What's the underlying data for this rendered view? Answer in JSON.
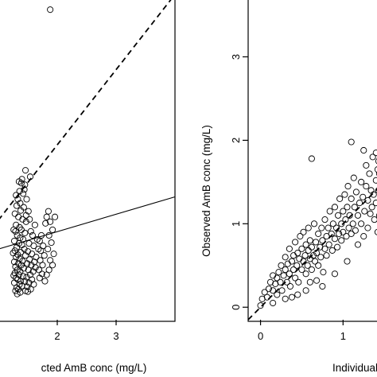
{
  "chart_data": [
    {
      "type": "scatter",
      "panel": "left",
      "xlabel": "cted AmB conc (mg/L)",
      "ylabel": "",
      "x_ticks": [
        "2",
        "3"
      ],
      "y_ticks": [],
      "xlim": [
        1.0,
        4.0
      ],
      "ylim": [
        0.0,
        4.0
      ],
      "grid": false,
      "lines": [
        {
          "name": "identity",
          "style": "dashed",
          "x": [
            1.0,
            4.0
          ],
          "y": [
            1.24,
            4.05
          ]
        },
        {
          "name": "regression",
          "style": "solid",
          "x": [
            1.0,
            4.0
          ],
          "y": [
            0.88,
            1.53
          ]
        }
      ],
      "points": [
        [
          1.88,
          3.86
        ],
        [
          1.54,
          1.78
        ],
        [
          1.46,
          1.86
        ],
        [
          1.4,
          1.75
        ],
        [
          1.39,
          1.7
        ],
        [
          1.35,
          1.72
        ],
        [
          1.44,
          1.62
        ],
        [
          1.36,
          1.6
        ],
        [
          1.42,
          1.57
        ],
        [
          1.3,
          1.55
        ],
        [
          1.33,
          1.5
        ],
        [
          1.37,
          1.45
        ],
        [
          1.31,
          1.42
        ],
        [
          1.43,
          1.4
        ],
        [
          1.38,
          1.36
        ],
        [
          1.28,
          1.32
        ],
        [
          1.34,
          1.28
        ],
        [
          1.41,
          1.25
        ],
        [
          1.47,
          1.22
        ],
        [
          1.3,
          1.18
        ],
        [
          1.36,
          1.15
        ],
        [
          1.39,
          1.12
        ],
        [
          1.29,
          1.1
        ],
        [
          1.45,
          1.08
        ],
        [
          1.32,
          1.05
        ],
        [
          1.37,
          1.02
        ],
        [
          1.42,
          1.0
        ],
        [
          1.27,
          0.98
        ],
        [
          1.35,
          0.95
        ],
        [
          1.4,
          0.93
        ],
        [
          1.31,
          0.9
        ],
        [
          1.44,
          0.88
        ],
        [
          1.28,
          0.86
        ],
        [
          1.38,
          0.84
        ],
        [
          1.33,
          0.81
        ],
        [
          1.46,
          0.8
        ],
        [
          1.3,
          0.78
        ],
        [
          1.36,
          0.76
        ],
        [
          1.41,
          0.73
        ],
        [
          1.27,
          0.72
        ],
        [
          1.34,
          0.7
        ],
        [
          1.39,
          0.68
        ],
        [
          1.29,
          0.66
        ],
        [
          1.43,
          0.64
        ],
        [
          1.32,
          0.62
        ],
        [
          1.37,
          0.6
        ],
        [
          1.28,
          0.58
        ],
        [
          1.35,
          0.56
        ],
        [
          1.42,
          0.54
        ],
        [
          1.3,
          0.52
        ],
        [
          1.33,
          0.5
        ],
        [
          1.38,
          0.48
        ],
        [
          1.27,
          0.46
        ],
        [
          1.36,
          0.44
        ],
        [
          1.4,
          0.42
        ],
        [
          1.31,
          0.4
        ],
        [
          1.34,
          0.38
        ],
        [
          1.29,
          0.36
        ],
        [
          1.37,
          0.34
        ],
        [
          1.32,
          0.32
        ],
        [
          1.55,
          1.1
        ],
        [
          1.62,
          1.18
        ],
        [
          1.58,
          1.05
        ],
        [
          1.66,
          1.0
        ],
        [
          1.52,
          0.95
        ],
        [
          1.6,
          0.92
        ],
        [
          1.68,
          0.88
        ],
        [
          1.5,
          0.85
        ],
        [
          1.57,
          0.82
        ],
        [
          1.64,
          0.78
        ],
        [
          1.53,
          0.75
        ],
        [
          1.61,
          0.72
        ],
        [
          1.49,
          0.7
        ],
        [
          1.56,
          0.68
        ],
        [
          1.63,
          0.65
        ],
        [
          1.51,
          0.62
        ],
        [
          1.59,
          0.6
        ],
        [
          1.54,
          0.56
        ],
        [
          1.48,
          0.53
        ],
        [
          1.57,
          0.5
        ],
        [
          1.52,
          0.46
        ],
        [
          1.6,
          0.44
        ],
        [
          1.49,
          0.41
        ],
        [
          1.55,
          0.38
        ],
        [
          1.5,
          0.35
        ],
        [
          1.73,
          1.05
        ],
        [
          1.7,
          0.98
        ],
        [
          1.76,
          0.92
        ],
        [
          1.72,
          0.86
        ],
        [
          1.78,
          0.8
        ],
        [
          1.71,
          0.74
        ],
        [
          1.75,
          0.68
        ],
        [
          1.69,
          0.62
        ],
        [
          1.74,
          0.57
        ],
        [
          1.7,
          0.52
        ],
        [
          1.8,
          1.2
        ],
        [
          1.85,
          1.35
        ],
        [
          1.82,
          1.28
        ],
        [
          1.88,
          1.22
        ],
        [
          1.92,
          1.12
        ],
        [
          1.86,
          1.05
        ],
        [
          1.9,
          0.96
        ],
        [
          1.84,
          0.88
        ],
        [
          1.94,
          0.82
        ],
        [
          1.88,
          0.74
        ],
        [
          1.92,
          0.68
        ],
        [
          1.86,
          0.62
        ],
        [
          1.96,
          1.28
        ],
        [
          1.82,
          0.56
        ],
        [
          1.79,
          0.48
        ],
        [
          1.45,
          1.68
        ],
        [
          1.48,
          1.5
        ],
        [
          1.51,
          1.35
        ],
        [
          1.47,
          1.3
        ],
        [
          1.53,
          1.25
        ],
        [
          1.25,
          0.83
        ],
        [
          1.26,
          1.12
        ],
        [
          1.26,
          0.55
        ],
        [
          1.45,
          0.48
        ],
        [
          1.46,
          0.36
        ]
      ]
    },
    {
      "type": "scatter",
      "panel": "right",
      "xlabel": "Individual posterio",
      "ylabel": "Observed AmB conc (mg/L)",
      "x_ticks": [
        "0",
        "1"
      ],
      "y_ticks": [
        "0",
        "1",
        "2",
        "3"
      ],
      "xlim": [
        -0.15,
        1.45
      ],
      "ylim": [
        -0.15,
        3.7
      ],
      "grid": false,
      "lines": [
        {
          "name": "identity",
          "style": "dashed",
          "x": [
            -0.15,
            1.45
          ],
          "y": [
            -0.15,
            1.45
          ]
        }
      ],
      "points": [
        [
          0.0,
          0.02
        ],
        [
          0.02,
          0.1
        ],
        [
          0.05,
          0.18
        ],
        [
          0.08,
          0.12
        ],
        [
          0.1,
          0.22
        ],
        [
          0.12,
          0.3
        ],
        [
          0.15,
          0.2
        ],
        [
          0.15,
          0.38
        ],
        [
          0.18,
          0.28
        ],
        [
          0.2,
          0.35
        ],
        [
          0.2,
          0.15
        ],
        [
          0.22,
          0.42
        ],
        [
          0.24,
          0.3
        ],
        [
          0.25,
          0.5
        ],
        [
          0.26,
          0.2
        ],
        [
          0.28,
          0.38
        ],
        [
          0.3,
          0.45
        ],
        [
          0.3,
          0.6
        ],
        [
          0.32,
          0.3
        ],
        [
          0.33,
          0.52
        ],
        [
          0.35,
          0.4
        ],
        [
          0.35,
          0.7
        ],
        [
          0.36,
          0.25
        ],
        [
          0.38,
          0.55
        ],
        [
          0.4,
          0.45
        ],
        [
          0.4,
          0.62
        ],
        [
          0.42,
          0.35
        ],
        [
          0.42,
          0.78
        ],
        [
          0.44,
          0.5
        ],
        [
          0.45,
          0.65
        ],
        [
          0.46,
          0.3
        ],
        [
          0.47,
          0.58
        ],
        [
          0.48,
          0.85
        ],
        [
          0.5,
          0.45
        ],
        [
          0.5,
          0.7
        ],
        [
          0.52,
          0.55
        ],
        [
          0.52,
          0.9
        ],
        [
          0.54,
          0.62
        ],
        [
          0.55,
          0.4
        ],
        [
          0.55,
          0.75
        ],
        [
          0.57,
          0.5
        ],
        [
          0.58,
          0.68
        ],
        [
          0.58,
          0.95
        ],
        [
          0.6,
          0.58
        ],
        [
          0.6,
          0.8
        ],
        [
          0.62,
          0.45
        ],
        [
          0.62,
          0.72
        ],
        [
          0.64,
          0.62
        ],
        [
          0.65,
          1.0
        ],
        [
          0.66,
          0.55
        ],
        [
          0.67,
          0.78
        ],
        [
          0.68,
          0.65
        ],
        [
          0.7,
          0.88
        ],
        [
          0.7,
          0.5
        ],
        [
          0.72,
          0.72
        ],
        [
          0.73,
          0.6
        ],
        [
          0.74,
          0.95
        ],
        [
          0.75,
          0.8
        ],
        [
          0.76,
          0.42
        ],
        [
          0.78,
          0.7
        ],
        [
          0.78,
          1.05
        ],
        [
          0.8,
          0.85
        ],
        [
          0.8,
          0.62
        ],
        [
          0.82,
          0.95
        ],
        [
          0.83,
          0.75
        ],
        [
          0.84,
          1.15
        ],
        [
          0.86,
          0.88
        ],
        [
          0.87,
          0.68
        ],
        [
          0.88,
          1.0
        ],
        [
          0.9,
          0.82
        ],
        [
          0.9,
          1.2
        ],
        [
          0.92,
          0.95
        ],
        [
          0.93,
          0.72
        ],
        [
          0.94,
          1.1
        ],
        [
          0.95,
          0.88
        ],
        [
          0.96,
          1.3
        ],
        [
          0.98,
          1.0
        ],
        [
          0.98,
          0.8
        ],
        [
          1.0,
          1.15
        ],
        [
          1.0,
          0.9
        ],
        [
          1.02,
          1.35
        ],
        [
          1.03,
          1.05
        ],
        [
          1.04,
          0.85
        ],
        [
          1.05,
          1.2
        ],
        [
          1.06,
          1.45
        ],
        [
          1.07,
          0.95
        ],
        [
          1.08,
          1.1
        ],
        [
          1.1,
          1.3
        ],
        [
          1.1,
          0.88
        ],
        [
          1.12,
          1.0
        ],
        [
          1.13,
          1.55
        ],
        [
          1.14,
          1.2
        ],
        [
          1.15,
          0.92
        ],
        [
          1.16,
          1.38
        ],
        [
          1.18,
          1.1
        ],
        [
          1.18,
          0.75
        ],
        [
          1.2,
          1.25
        ],
        [
          1.22,
          1.5
        ],
        [
          1.22,
          1.0
        ],
        [
          1.24,
          1.32
        ],
        [
          1.25,
          0.85
        ],
        [
          1.26,
          1.15
        ],
        [
          1.28,
          1.45
        ],
        [
          1.28,
          1.7
        ],
        [
          1.3,
          1.28
        ],
        [
          1.3,
          0.95
        ],
        [
          1.32,
          1.6
        ],
        [
          1.33,
          1.12
        ],
        [
          1.34,
          1.4
        ],
        [
          1.35,
          1.2
        ],
        [
          1.36,
          1.8
        ],
        [
          1.37,
          1.35
        ],
        [
          1.38,
          1.05
        ],
        [
          1.4,
          1.52
        ],
        [
          1.4,
          1.25
        ],
        [
          1.42,
          1.65
        ],
        [
          1.42,
          0.9
        ],
        [
          1.43,
          1.4
        ],
        [
          1.43,
          1.75
        ],
        [
          1.44,
          1.1
        ],
        [
          0.62,
          1.78
        ],
        [
          1.1,
          1.98
        ],
        [
          1.4,
          1.85
        ],
        [
          1.25,
          1.88
        ],
        [
          1.44,
          1.6
        ],
        [
          0.3,
          0.1
        ],
        [
          0.45,
          0.15
        ],
        [
          0.6,
          0.3
        ],
        [
          0.75,
          0.25
        ],
        [
          0.9,
          0.4
        ],
        [
          1.05,
          0.55
        ],
        [
          0.55,
          0.2
        ],
        [
          0.68,
          0.32
        ],
        [
          0.15,
          0.05
        ],
        [
          0.38,
          0.12
        ]
      ]
    }
  ]
}
